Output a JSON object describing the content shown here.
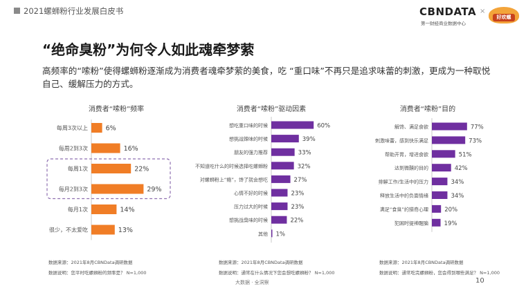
{
  "header": {
    "title": "2021螺蛳粉行业发展白皮书"
  },
  "logo": {
    "brand": "CBNDATA",
    "sub": "第一财经商业数据中心",
    "partner_badge": "好欢螺",
    "x": "×"
  },
  "main_title": "“绝命臭粉”为何令人如此魂牵梦萦",
  "intro": "高频率的“嗦粉”使得螺蛳粉逐渐成为消费者魂牵梦萦的美食，吃 “重口味”不再只是追求味蕾的刺激，更成为一种取悦自己、缓解压力的方式。",
  "colors": {
    "orange": "#f07d26",
    "purple": "#6f2fa0",
    "highlight_border": "#8e6fb0"
  },
  "chart_data": [
    {
      "type": "bar",
      "orientation": "horizontal",
      "title": "消费者“嗦粉”频率",
      "categories": [
        "每周3次以上",
        "每周2到3次",
        "每周1次",
        "每月2到3次",
        "每月1次",
        "很少，不太爱吃"
      ],
      "values": [
        6,
        16,
        22,
        29,
        14,
        13
      ],
      "value_labels": [
        "6%",
        "16%",
        "22%",
        "29%",
        "14%",
        "13%"
      ],
      "highlighted_categories": [
        "每周1次",
        "每月2到3次"
      ],
      "source": "数据来源：2021年8月CBNData调研数据",
      "note": "数据说明：您平时吃螺蛳粉的频率是？ N=1,000"
    },
    {
      "type": "bar",
      "orientation": "horizontal",
      "title": "消费者“嗦粉”驱动因素",
      "categories": [
        "想吃重口味的时候",
        "想挑战辣味的时候",
        "朋友的强力推荐",
        "不知道吃什么的时候选择吃螺蛳粉",
        "对螺蛳粉上“瘾”，馋了就会想吃",
        "心情不好的时候",
        "压力过大的时候",
        "想挑战臭味的时候",
        "其他"
      ],
      "values": [
        60,
        39,
        33,
        32,
        27,
        23,
        23,
        22,
        1
      ],
      "value_labels": [
        "60%",
        "39%",
        "33%",
        "32%",
        "27%",
        "23%",
        "23%",
        "22%",
        "1%"
      ],
      "source": "数据来源：2021年8月CBNData调研数据",
      "note": "数据说明：通常在什么情况下您会想吃螺蛳粉？ N=1,000"
    },
    {
      "type": "bar",
      "orientation": "horizontal",
      "title": "消费者“嗦粉”目的",
      "categories": [
        "解馋、满足食欲",
        "刺激味蕾，感到快乐满足",
        "帮助开胃，增进食欲",
        "达到微醺的目的",
        "排解工作/生活中的压力",
        "释放生活中的负面情绪",
        "满足“食臭”的猎奇心理",
        "犯困时提神醒脑"
      ],
      "values": [
        77,
        73,
        51,
        42,
        34,
        34,
        20,
        19
      ],
      "value_labels": [
        "77%",
        "73%",
        "51%",
        "42%",
        "34%",
        "34%",
        "20%",
        "19%"
      ],
      "source": "数据来源：2021年8月CBNData调研数据",
      "note": "数据说明：通常吃完螺蛳粉，您会得到哪些满足？ N=1,000"
    }
  ],
  "footer": {
    "text": "大数据 · 全洞察",
    "page_number": "10"
  }
}
